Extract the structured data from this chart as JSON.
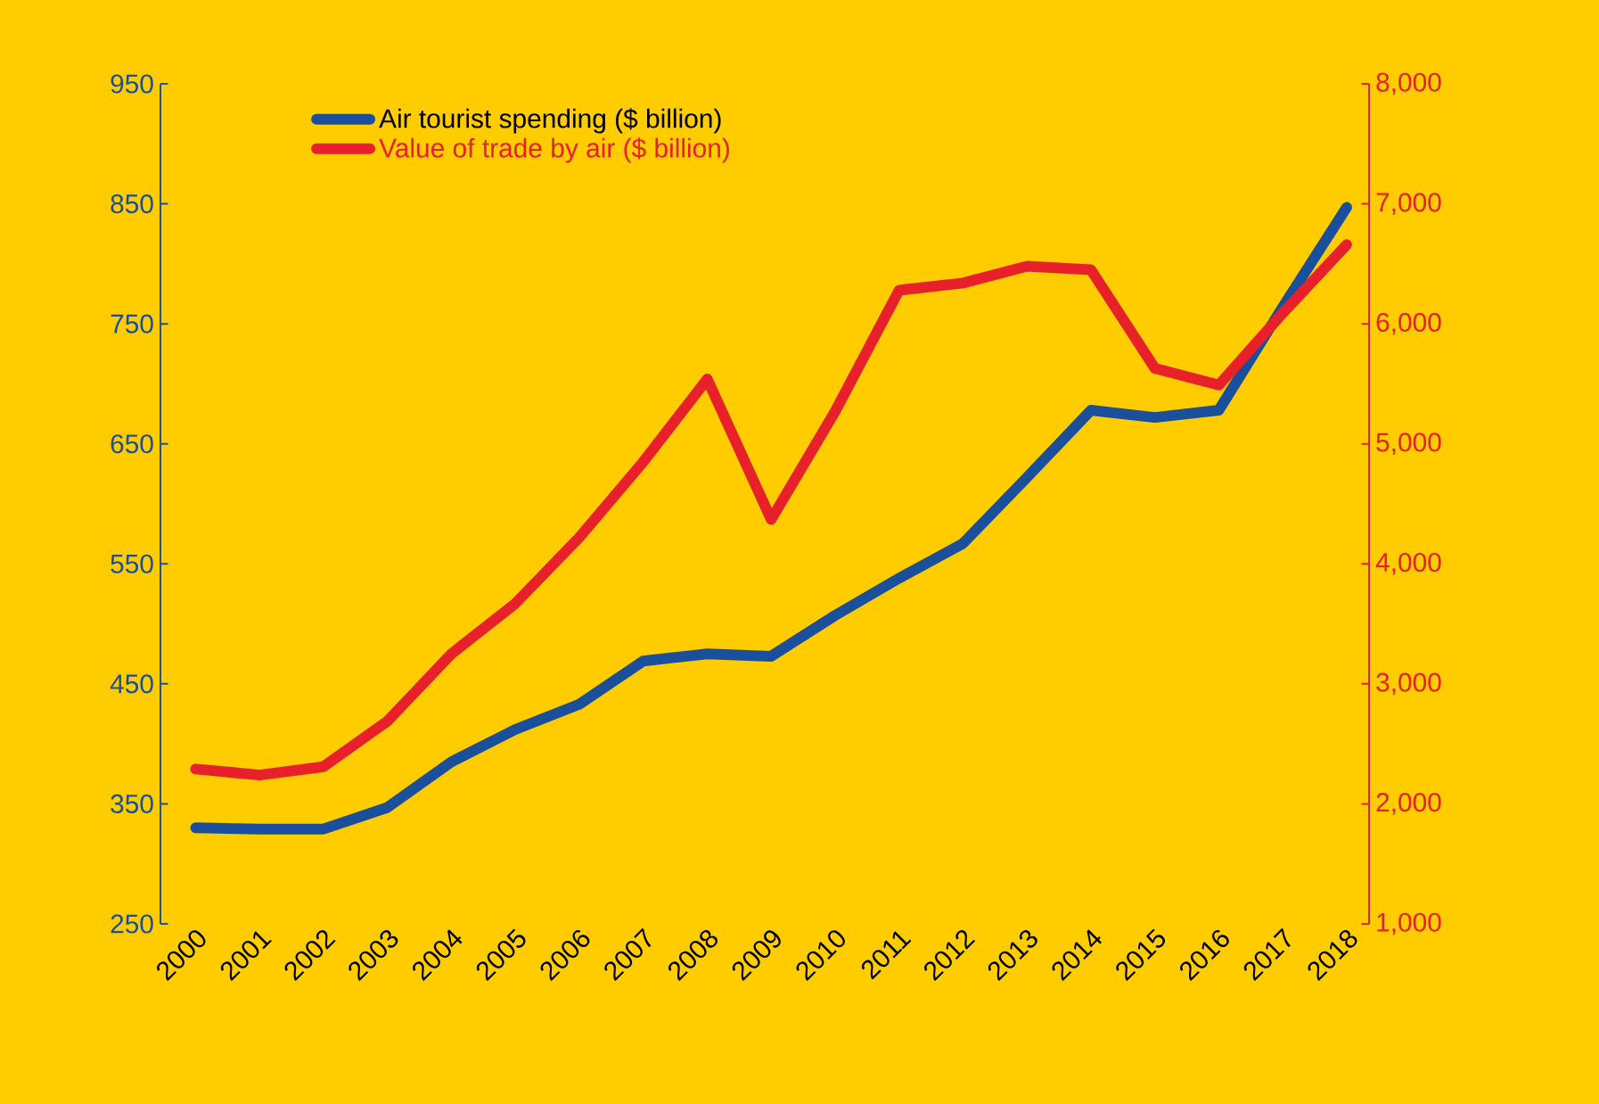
{
  "chart_data": {
    "type": "line",
    "categories": [
      "2000",
      "2001",
      "2002",
      "2003",
      "2004",
      "2005",
      "2006",
      "2007",
      "2008",
      "2009",
      "2010",
      "2011",
      "2012",
      "2013",
      "2014",
      "2015",
      "2016",
      "2017",
      "2018"
    ],
    "series": [
      {
        "name": "Air tourist spending ($ billion)",
        "color": "#1a4f9c",
        "values": [
          330,
          329,
          329,
          347,
          385,
          412,
          433,
          469,
          475,
          473,
          507,
          538,
          567,
          622,
          678,
          672,
          678,
          764,
          847
        ]
      },
      {
        "name": "Value of trade by air ($ billion)",
        "color": "#e8202a",
        "axis": "y2",
        "values": [
          2290,
          2240,
          2310,
          2690,
          3250,
          3670,
          4220,
          4850,
          5540,
          4370,
          5270,
          6280,
          6340,
          6480,
          6450,
          5630,
          5490,
          6090,
          6660
        ]
      }
    ],
    "ylim": [
      250,
      950
    ],
    "yticks": [
      250,
      350,
      450,
      550,
      650,
      750,
      850,
      950
    ],
    "y2lim": [
      1000,
      8000
    ],
    "y2ticks": [
      {
        "value": 1000,
        "label": "1,000"
      },
      {
        "value": 2000,
        "label": "2,000"
      },
      {
        "value": 3000,
        "label": "3,000"
      },
      {
        "value": 4000,
        "label": "4,000"
      },
      {
        "value": 5000,
        "label": "5,000"
      },
      {
        "value": 6000,
        "label": "6,000"
      },
      {
        "value": 7000,
        "label": "7,000"
      },
      {
        "value": 8000,
        "label": "8,000"
      }
    ],
    "grid": false,
    "legend": "top left",
    "marker": "none",
    "line_style": "solid"
  }
}
